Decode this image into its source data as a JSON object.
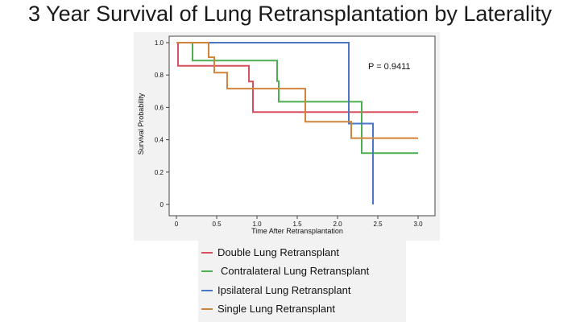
{
  "slide": {
    "title": "3 Year Survival of Lung Retransplantation by Laterality"
  },
  "chart_data": {
    "type": "line",
    "step": true,
    "title": "3 Year Survival of Lung Retransplantation by Laterality",
    "xlabel": "Time After Retransplantation",
    "ylabel": "Survival Probability",
    "xlim": [
      0,
      3.0
    ],
    "ylim": [
      0,
      1.0
    ],
    "x_ticks": [
      "0",
      "0.5",
      "1.0",
      "1.5",
      "2.0",
      "2.5",
      "3.0"
    ],
    "y_ticks": [
      "0",
      "0.2",
      "0.4",
      "0.6",
      "0.8",
      "1.0"
    ],
    "grid": false,
    "annotation": "P = 0.9411",
    "legend_position": "below",
    "series": [
      {
        "name": "Double Lung Retransplant",
        "color": "#d94f5c",
        "points": [
          [
            0,
            1.0
          ],
          [
            0.02,
            1.0
          ],
          [
            0.02,
            0.857
          ],
          [
            0.9,
            0.857
          ],
          [
            0.9,
            0.76
          ],
          [
            0.95,
            0.76
          ],
          [
            0.95,
            0.571
          ],
          [
            3.0,
            0.571
          ]
        ]
      },
      {
        "name": "Contralateral Lung Retransplant",
        "color": "#4caf50",
        "points": [
          [
            0,
            1.0
          ],
          [
            0.2,
            1.0
          ],
          [
            0.2,
            0.889
          ],
          [
            1.25,
            0.889
          ],
          [
            1.25,
            0.762
          ],
          [
            1.27,
            0.762
          ],
          [
            1.27,
            0.635
          ],
          [
            2.3,
            0.635
          ],
          [
            2.3,
            0.317
          ],
          [
            3.0,
            0.317
          ]
        ]
      },
      {
        "name": "Ipsilateral Lung Retransplant",
        "color": "#4a77c4",
        "points": [
          [
            0,
            1.0
          ],
          [
            2.14,
            1.0
          ],
          [
            2.14,
            0.5
          ],
          [
            2.44,
            0.5
          ],
          [
            2.44,
            0.0
          ]
        ]
      },
      {
        "name": "Single Lung Retransplant",
        "color": "#d2843a",
        "points": [
          [
            0,
            1.0
          ],
          [
            0.4,
            1.0
          ],
          [
            0.4,
            0.91
          ],
          [
            0.47,
            0.91
          ],
          [
            0.47,
            0.815
          ],
          [
            0.63,
            0.815
          ],
          [
            0.63,
            0.716
          ],
          [
            1.6,
            0.716
          ],
          [
            1.6,
            0.511
          ],
          [
            2.17,
            0.511
          ],
          [
            2.17,
            0.41
          ],
          [
            3.0,
            0.41
          ]
        ]
      }
    ]
  }
}
